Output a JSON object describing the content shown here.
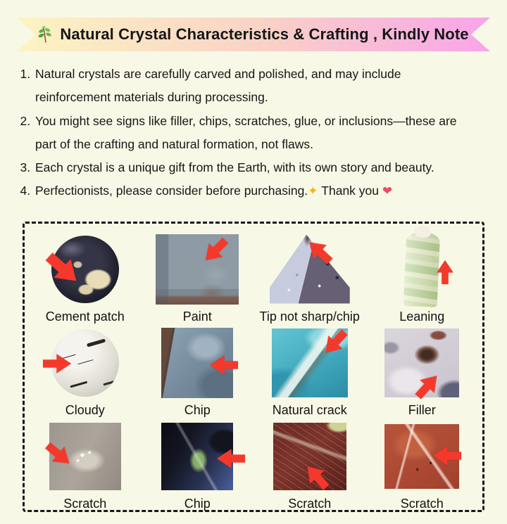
{
  "banner": {
    "title": "Natural Crystal Characteristics & Crafting , Kindly Note",
    "leaf_icon": "herb-branch",
    "gradient": [
      "#fcf4c2",
      "#f9d2c6",
      "#f9a4ea"
    ]
  },
  "notes": [
    {
      "text": "Natural crystals are carefully carved and polished, and may include reinforcement materials during processing."
    },
    {
      "text": "You might see signs like filler, chips, scratches, glue, or inclusions—these are part of the crafting and natural formation, not flaws."
    },
    {
      "text": "Each crystal is a unique gift from the Earth, with its own story and beauty."
    },
    {
      "text": "Perfectionists, please consider before purchasing.",
      "sparkle": "✦",
      "suffix": "Thank you",
      "heart": "❤"
    }
  ],
  "examples": [
    {
      "label": "Cement patch",
      "type": "t-cement",
      "arrow": "down-right"
    },
    {
      "label": "Paint",
      "type": "t-paint",
      "arrow": "down-left"
    },
    {
      "label": "Tip not sharp/chip",
      "type": "t-point",
      "arrow": "up-left"
    },
    {
      "label": "Leaning",
      "type": "t-tower",
      "arrow": "up"
    },
    {
      "label": "Cloudy",
      "type": "t-cloudy",
      "arrow": "right"
    },
    {
      "label": "Chip",
      "type": "t-chipblue",
      "arrow": "left"
    },
    {
      "label": "Natural crack",
      "type": "t-crack",
      "arrow": "down-left"
    },
    {
      "label": "Filler",
      "type": "t-filler",
      "arrow": "up-right"
    },
    {
      "label": "Scratch",
      "type": "t-scratchgray",
      "arrow": "down-right"
    },
    {
      "label": "Chip",
      "type": "t-chipdark",
      "arrow": "left"
    },
    {
      "label": "Scratch",
      "type": "t-scratchwine",
      "arrow": "up-left"
    },
    {
      "label": "Scratch",
      "type": "t-scratchred",
      "arrow": "left"
    }
  ],
  "colors": {
    "background": "#f8f8e6",
    "arrow": "#f4392c",
    "border": "#181818",
    "sparkle": "#f6b40e",
    "heart": "#ee4966"
  }
}
